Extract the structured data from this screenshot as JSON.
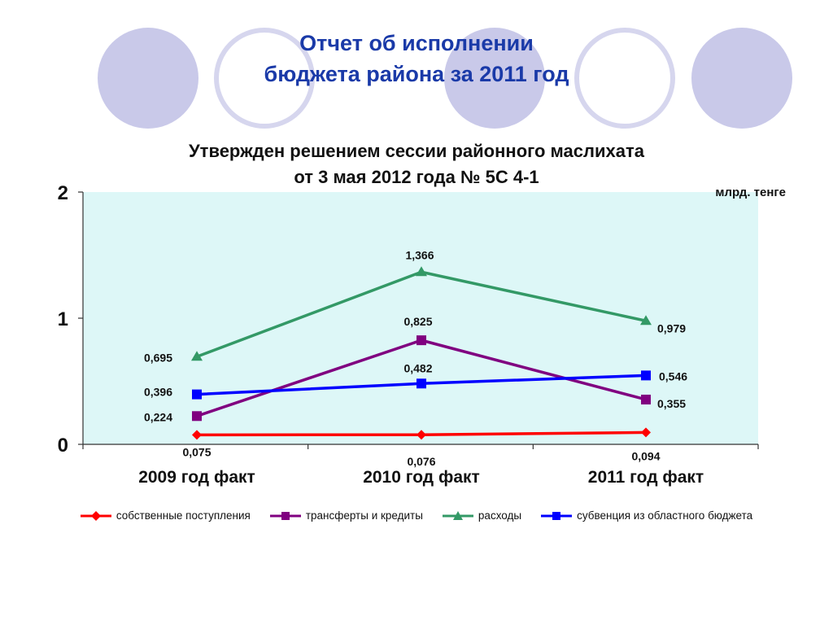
{
  "page": {
    "title_line1": "Отчет об исполнении",
    "title_line2": "бюджета района за 2011 год",
    "subtitle_line1": "Утвержден решением сессии районного маслихата",
    "subtitle_line2": "от 3 мая 2012 года № 5С 4-1",
    "unit": "млрд. тенге"
  },
  "chart_data": {
    "type": "line",
    "categories": [
      "2009 год факт",
      "2010 год факт",
      "2011 год факт"
    ],
    "ylim": [
      0,
      2
    ],
    "yticks": [
      "0",
      "1",
      "2"
    ],
    "plot_background": "#ddf7f7",
    "legend_position": "bottom",
    "grid": false,
    "series": [
      {
        "name": "собственные поступления",
        "color": "#ff0000",
        "marker": "diamond",
        "values": [
          0.075,
          0.076,
          0.094
        ],
        "labels": [
          "0,075",
          "0,076",
          "0,094"
        ]
      },
      {
        "name": "трансферты и кредиты",
        "color": "#800080",
        "marker": "square",
        "values": [
          0.224,
          0.825,
          0.355
        ],
        "labels": [
          "0,224",
          "0,825",
          "0,355"
        ]
      },
      {
        "name": "расходы",
        "color": "#339966",
        "marker": "triangle",
        "values": [
          0.695,
          1.366,
          0.979
        ],
        "labels": [
          "0,695",
          "1,366",
          "0,979"
        ]
      },
      {
        "name": "субвенция из областного бюджета",
        "color": "#0000ff",
        "marker": "square",
        "values": [
          0.396,
          0.482,
          0.546
        ],
        "labels": [
          "0,396",
          "0,482",
          "0,546"
        ]
      }
    ]
  }
}
